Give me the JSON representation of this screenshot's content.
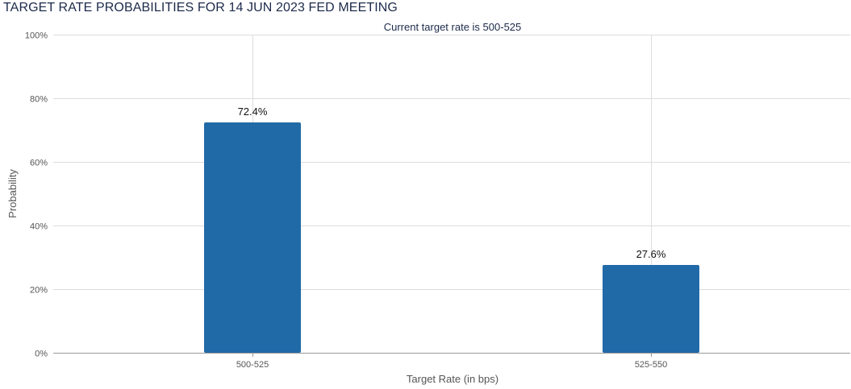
{
  "chart_data": {
    "type": "bar",
    "title": "TARGET RATE PROBABILITIES FOR 14 JUN 2023 FED MEETING",
    "subtitle": "Current target rate is 500-525",
    "xlabel": "Target Rate (in bps)",
    "ylabel": "Probability",
    "categories": [
      "500-525",
      "525-550"
    ],
    "values": [
      72.4,
      27.6
    ],
    "data_labels": [
      "72.4%",
      "27.6%"
    ],
    "ylim": [
      0,
      100
    ],
    "yticks": [
      0,
      20,
      40,
      60,
      80,
      100
    ],
    "ytick_labels": [
      "0%",
      "20%",
      "40%",
      "60%",
      "80%",
      "100%"
    ],
    "grid": true,
    "bar_color": "#216aa8",
    "grid_color": "#dddddd"
  }
}
